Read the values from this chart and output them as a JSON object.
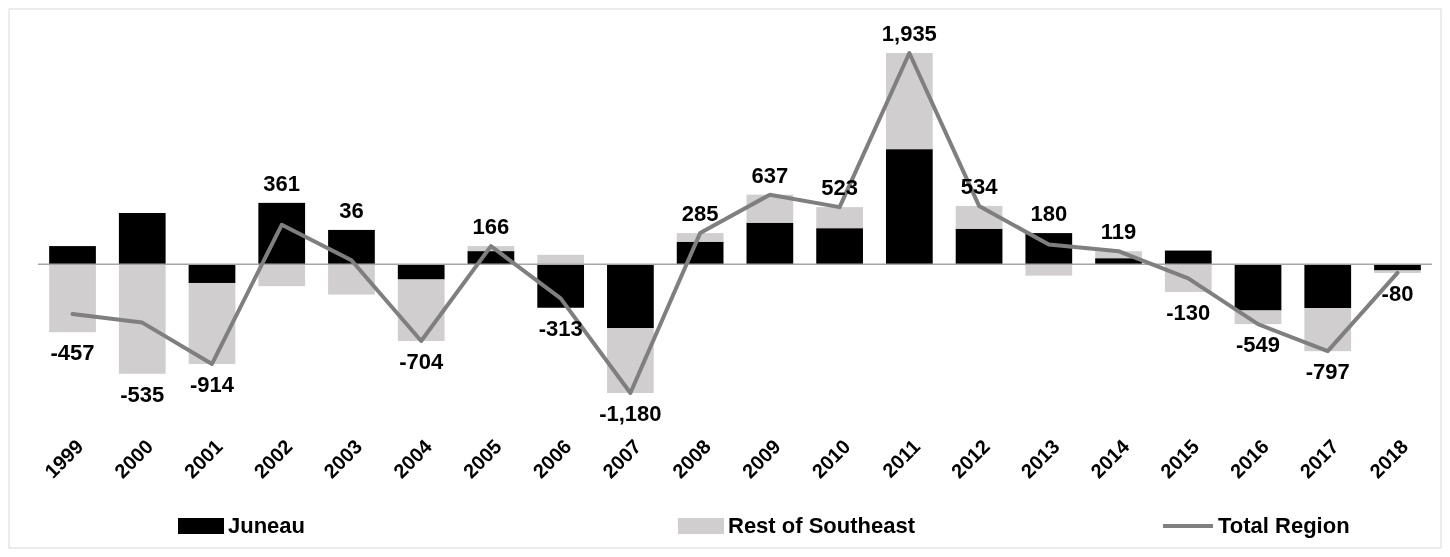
{
  "chart_data": {
    "type": "bar",
    "stacked": true,
    "categories": [
      "1999",
      "2000",
      "2001",
      "2002",
      "2003",
      "2004",
      "2005",
      "2006",
      "2007",
      "2008",
      "2009",
      "2010",
      "2011",
      "2012",
      "2013",
      "2014",
      "2015",
      "2016",
      "2017",
      "2018"
    ],
    "series": [
      {
        "name": "Juneau",
        "color": "#000000",
        "values": [
          166,
          469,
          -172,
          562,
          314,
          -140,
          120,
          -399,
          -586,
          206,
          380,
          330,
          1054,
          325,
          285,
          55,
          125,
          -424,
          -402,
          -57
        ]
      },
      {
        "name": "Rest of Southeast",
        "color": "#d0cece",
        "values": [
          -623,
          -1004,
          -742,
          -201,
          -278,
          -564,
          46,
          86,
          -594,
          79,
          257,
          193,
          881,
          209,
          -105,
          64,
          -255,
          -125,
          -395,
          -23
        ]
      },
      {
        "name": "Total Region",
        "type": "line",
        "color": "#7f7f7f",
        "values": [
          -457,
          -535,
          -914,
          361,
          36,
          -704,
          166,
          -313,
          -1180,
          285,
          637,
          523,
          1935,
          534,
          180,
          119,
          -130,
          -549,
          -797,
          -80
        ],
        "value_labels": [
          "-457",
          "-535",
          "-914",
          "361",
          "36",
          "-704",
          "166",
          "-313",
          "-1,180",
          "285",
          "637",
          "523",
          "1,935",
          "534",
          "180",
          "119",
          "-130",
          "-549",
          "-797",
          "-80"
        ]
      }
    ],
    "tick_labels": "x",
    "legend": "bottom"
  }
}
